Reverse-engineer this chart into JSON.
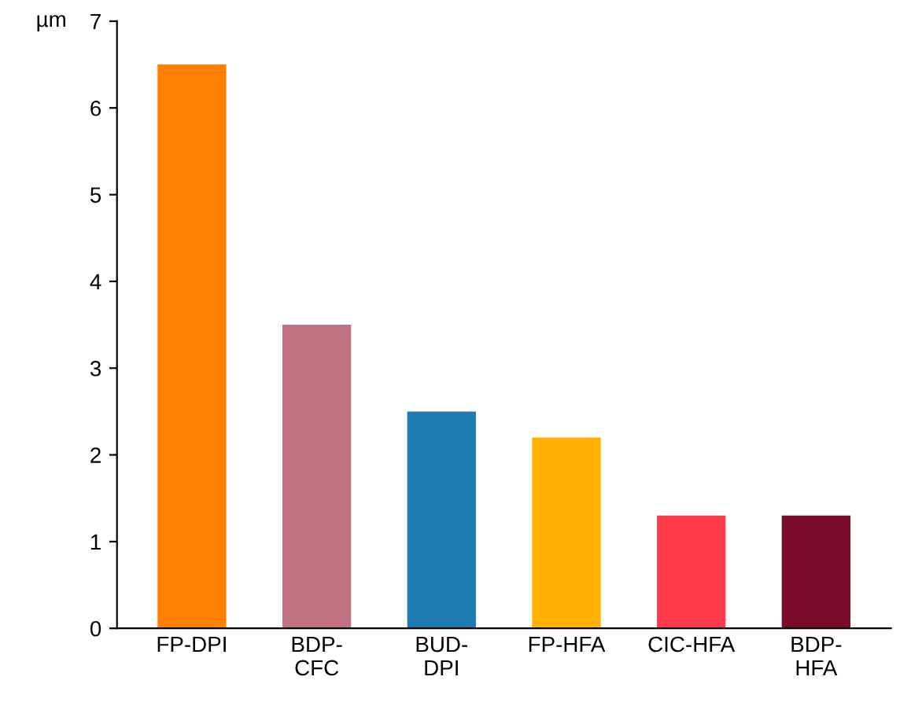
{
  "chart_data": {
    "type": "bar",
    "ylabel": "µm",
    "categories": [
      "FP-DPI",
      "BDP-\nCFC",
      "BUD-\nDPI",
      "FP-HFA",
      "CIC-HFA",
      "BDP-\nHFA"
    ],
    "values": [
      6.5,
      3.5,
      2.5,
      2.2,
      1.3,
      1.3
    ],
    "colors": [
      "#ff8000",
      "#c07282",
      "#1f7cb3",
      "#ffb000",
      "#ff3a4a",
      "#7a0a2a"
    ],
    "ylim": [
      0,
      7
    ],
    "yticks": [
      0,
      1,
      2,
      3,
      4,
      5,
      6,
      7
    ],
    "grid": false,
    "legend": false
  }
}
